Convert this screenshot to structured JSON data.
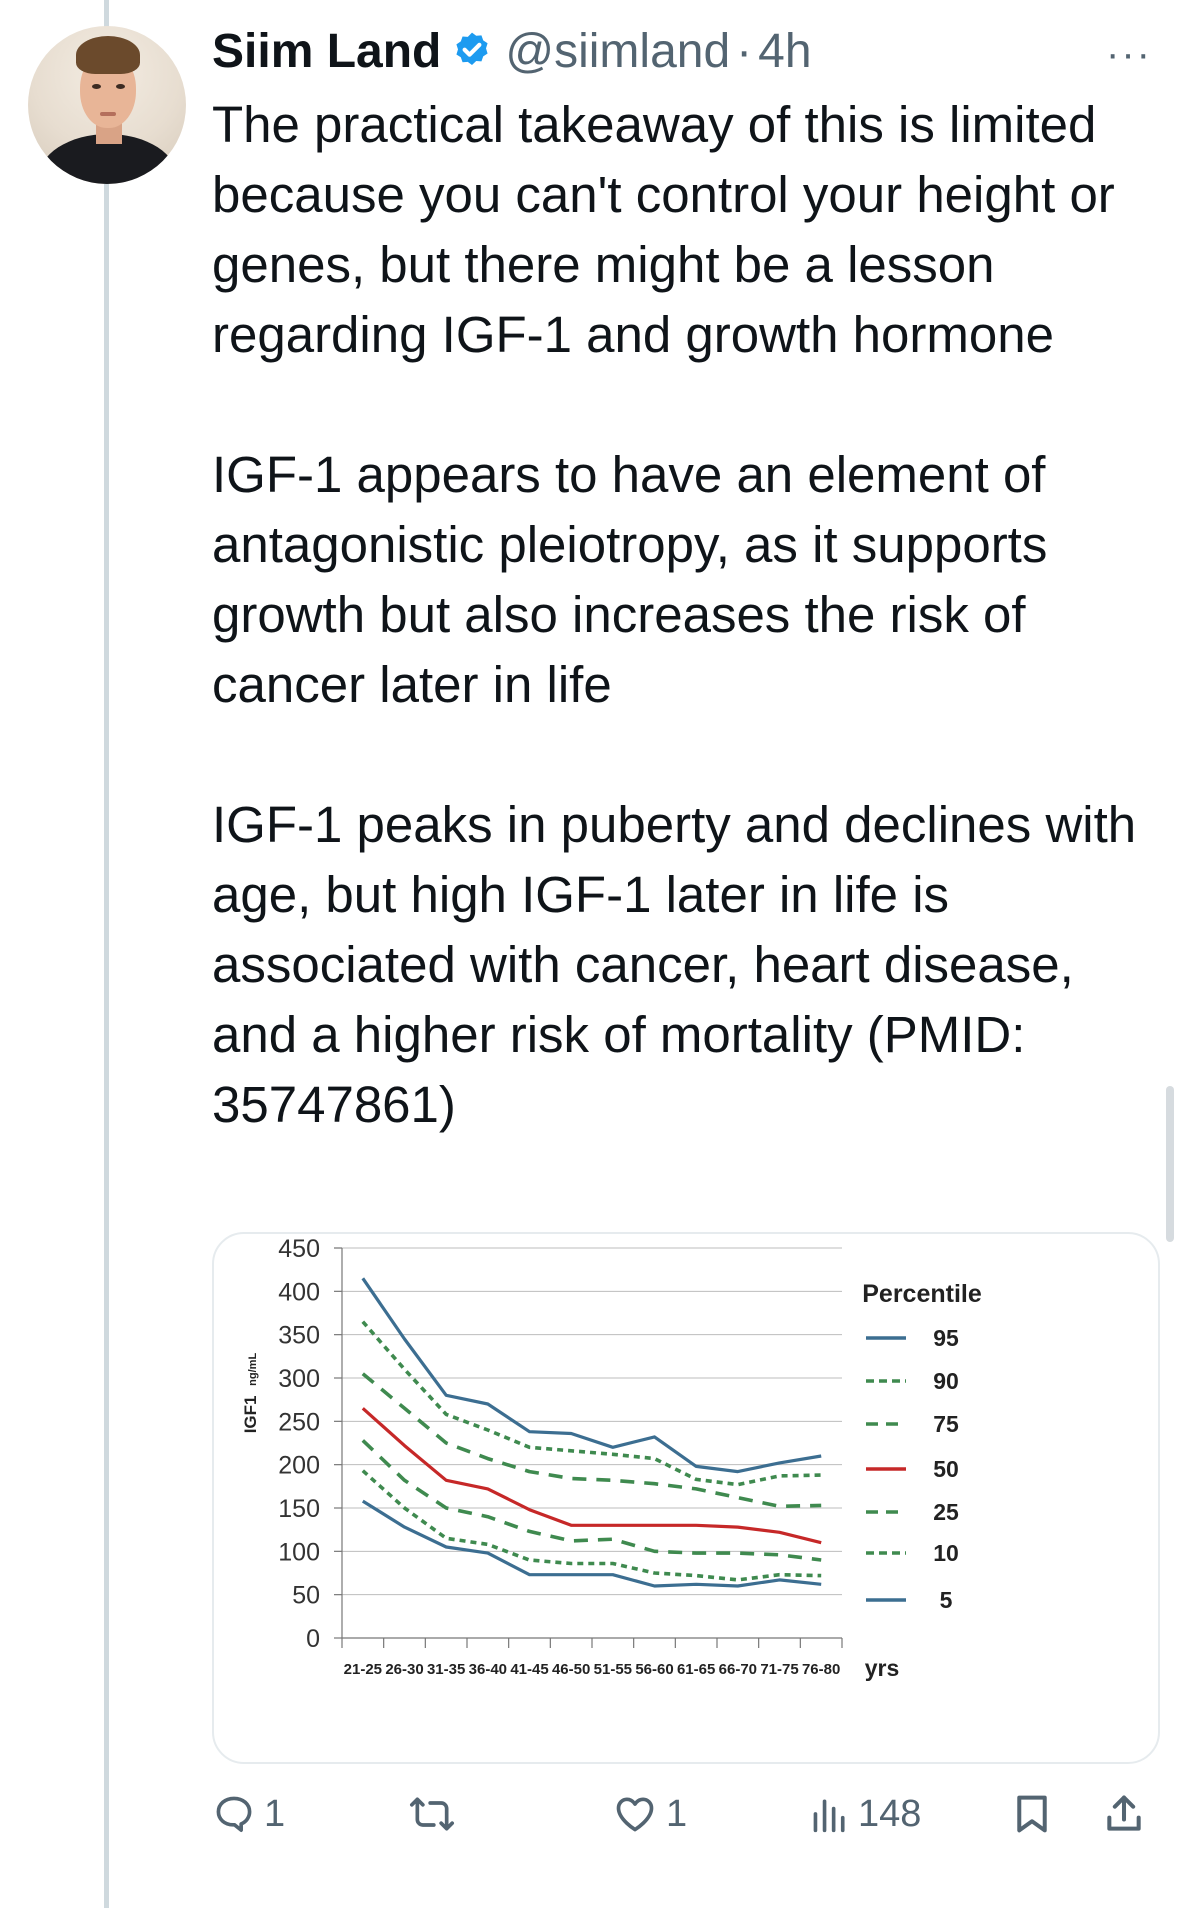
{
  "tweet": {
    "author_name": "Siim Land",
    "handle": "@siimland",
    "separator": "·",
    "time": "4h",
    "more_label": "···",
    "paragraphs": [
      "The practical takeaway of this is limited because you can't control your height or genes, but there might be a lesson regarding IGF-1 and growth hormone",
      "IGF-1 appears to have an element of antagonistic pleiotropy, as it supports growth but also increases the risk of cancer later in life",
      "IGF-1 peaks in puberty and declines with age, but high IGF-1 later in life is associated with cancer, heart disease, and a higher risk of mortality (PMID: 35747861)"
    ]
  },
  "actions": {
    "reply_count": "1",
    "like_count": "1",
    "views_count": "148"
  },
  "colors": {
    "verified": "#1d9bf0",
    "blue_line": "#3c6e91",
    "green_line": "#3f8a4f",
    "red_line": "#c62828",
    "grid": "#bdbdbd",
    "muted": "#536471"
  },
  "chart_data": {
    "type": "line",
    "ylabel": "IGF1",
    "ylabel_unit": "ng/mL",
    "xunit": "yrs",
    "ylim": [
      0,
      450
    ],
    "yticks": [
      0,
      50,
      100,
      150,
      200,
      250,
      300,
      350,
      400,
      450
    ],
    "categories": [
      "21-25",
      "26-30",
      "31-35",
      "36-40",
      "41-45",
      "46-50",
      "51-55",
      "56-60",
      "61-65",
      "66-70",
      "71-75",
      "76-80"
    ],
    "legend_title": "Percentile",
    "legend_position": "right",
    "grid": true,
    "series": [
      {
        "name": "95",
        "style": "solid",
        "color": "blue",
        "values": [
          415,
          345,
          280,
          270,
          238,
          236,
          220,
          232,
          198,
          192,
          202,
          210
        ]
      },
      {
        "name": "90",
        "style": "dotted",
        "color": "green",
        "values": [
          365,
          310,
          258,
          240,
          220,
          216,
          212,
          207,
          183,
          177,
          187,
          188
        ]
      },
      {
        "name": "75",
        "style": "dashed",
        "color": "green",
        "values": [
          305,
          265,
          225,
          207,
          192,
          184,
          182,
          178,
          172,
          162,
          152,
          153
        ]
      },
      {
        "name": "50",
        "style": "solid",
        "color": "red",
        "values": [
          265,
          222,
          182,
          172,
          148,
          130,
          130,
          130,
          130,
          128,
          122,
          110
        ]
      },
      {
        "name": "25",
        "style": "dashed",
        "color": "green",
        "values": [
          228,
          182,
          150,
          140,
          123,
          112,
          114,
          100,
          98,
          98,
          96,
          90
        ]
      },
      {
        "name": "10",
        "style": "dotted",
        "color": "green",
        "values": [
          193,
          150,
          115,
          108,
          90,
          86,
          86,
          75,
          72,
          67,
          73,
          72
        ]
      },
      {
        "name": "5",
        "style": "solid",
        "color": "blue",
        "values": [
          158,
          128,
          105,
          98,
          73,
          73,
          73,
          60,
          62,
          60,
          67,
          62
        ]
      }
    ]
  }
}
